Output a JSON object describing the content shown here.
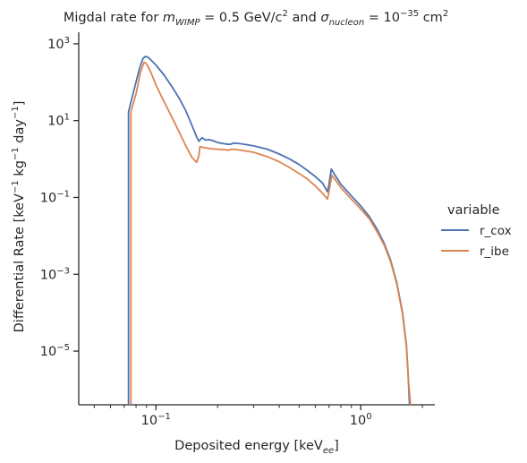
{
  "chart_data": {
    "type": "line",
    "title": {
      "prefix": "Migdal rate for ",
      "m_sym": "m",
      "m_sub": "WIMP",
      "m_val": " = 0.5 GeV/c",
      "m_exp": "2",
      "and_word": " and ",
      "sigma_sym": "σ",
      "sigma_sub": "nucleon",
      "sigma_val": " = 10",
      "sigma_exp": "−35",
      "sigma_unit": " cm",
      "sigma_unit_exp": "2"
    },
    "xlabel": {
      "text": "Deposited energy [keV",
      "sub": "ee",
      "close": "]"
    },
    "ylabel": {
      "t1": "Differential Rate [keV",
      "e1": "−1",
      "t2": " kg",
      "e2": "−1",
      "t3": " day",
      "e3": "−1",
      "t4": "]"
    },
    "x_scale": "log",
    "y_scale": "log",
    "xlim": [
      0.042,
      2.3
    ],
    "ylim": [
      4e-07,
      2000
    ],
    "x_major_ticks": [
      {
        "value": 0.1,
        "base": "10",
        "exp": "−1"
      },
      {
        "value": 1.0,
        "base": "10",
        "exp": "0"
      }
    ],
    "x_minor_ticks": [
      0.05,
      0.06,
      0.07,
      0.08,
      0.09,
      0.2,
      0.3,
      0.4,
      0.5,
      0.6,
      0.7,
      0.8,
      0.9,
      2.0
    ],
    "y_major_ticks": [
      {
        "value": 1000,
        "base": "10",
        "exp": "3"
      },
      {
        "value": 10,
        "base": "10",
        "exp": "1"
      },
      {
        "value": 0.1,
        "base": "10",
        "exp": "−1"
      },
      {
        "value": 0.001,
        "base": "10",
        "exp": "−3"
      },
      {
        "value": 1e-05,
        "base": "10",
        "exp": "−5"
      }
    ],
    "grid": false,
    "legend": {
      "title": "variable",
      "placement": "right"
    },
    "series": [
      {
        "name": "r_cox",
        "color": "#4c72b0",
        "points": [
          [
            0.0735,
            4e-07
          ],
          [
            0.0735,
            17
          ],
          [
            0.078,
            60
          ],
          [
            0.083,
            220
          ],
          [
            0.0865,
            420
          ],
          [
            0.089,
            470
          ],
          [
            0.092,
            440
          ],
          [
            0.1,
            280
          ],
          [
            0.11,
            150
          ],
          [
            0.12,
            75
          ],
          [
            0.13,
            38
          ],
          [
            0.14,
            18
          ],
          [
            0.15,
            7.5
          ],
          [
            0.158,
            3.8
          ],
          [
            0.162,
            2.9
          ],
          [
            0.168,
            3.6
          ],
          [
            0.175,
            3.1
          ],
          [
            0.182,
            3.2
          ],
          [
            0.19,
            3.0
          ],
          [
            0.2,
            2.7
          ],
          [
            0.215,
            2.5
          ],
          [
            0.23,
            2.4
          ],
          [
            0.24,
            2.6
          ],
          [
            0.26,
            2.5
          ],
          [
            0.3,
            2.2
          ],
          [
            0.35,
            1.8
          ],
          [
            0.4,
            1.35
          ],
          [
            0.45,
            1.0
          ],
          [
            0.5,
            0.72
          ],
          [
            0.55,
            0.5
          ],
          [
            0.6,
            0.35
          ],
          [
            0.65,
            0.24
          ],
          [
            0.688,
            0.14
          ],
          [
            0.7,
            0.22
          ],
          [
            0.718,
            0.55
          ],
          [
            0.74,
            0.42
          ],
          [
            0.8,
            0.22
          ],
          [
            0.9,
            0.11
          ],
          [
            1.0,
            0.06
          ],
          [
            1.1,
            0.032
          ],
          [
            1.2,
            0.015
          ],
          [
            1.3,
            0.0065
          ],
          [
            1.4,
            0.0023
          ],
          [
            1.5,
            0.0006
          ],
          [
            1.6,
            0.0001
          ],
          [
            1.67,
            1.5e-05
          ],
          [
            1.7,
            3e-06
          ],
          [
            1.73,
            4e-07
          ]
        ]
      },
      {
        "name": "r_ibe",
        "color": "#dd8452",
        "points": [
          [
            0.0755,
            4e-07
          ],
          [
            0.0755,
            17
          ],
          [
            0.08,
            50
          ],
          [
            0.084,
            180
          ],
          [
            0.0875,
            330
          ],
          [
            0.09,
            300
          ],
          [
            0.095,
            170
          ],
          [
            0.1,
            85
          ],
          [
            0.11,
            30
          ],
          [
            0.12,
            12
          ],
          [
            0.13,
            5.0
          ],
          [
            0.14,
            2.2
          ],
          [
            0.15,
            1.1
          ],
          [
            0.158,
            0.82
          ],
          [
            0.162,
            1.2
          ],
          [
            0.164,
            2.1
          ],
          [
            0.17,
            2.0
          ],
          [
            0.185,
            1.85
          ],
          [
            0.2,
            1.8
          ],
          [
            0.215,
            1.75
          ],
          [
            0.225,
            1.7
          ],
          [
            0.235,
            1.8
          ],
          [
            0.25,
            1.75
          ],
          [
            0.3,
            1.5
          ],
          [
            0.35,
            1.15
          ],
          [
            0.4,
            0.85
          ],
          [
            0.45,
            0.6
          ],
          [
            0.5,
            0.42
          ],
          [
            0.55,
            0.3
          ],
          [
            0.6,
            0.2
          ],
          [
            0.65,
            0.13
          ],
          [
            0.688,
            0.09
          ],
          [
            0.7,
            0.14
          ],
          [
            0.722,
            0.38
          ],
          [
            0.74,
            0.32
          ],
          [
            0.8,
            0.18
          ],
          [
            0.9,
            0.09
          ],
          [
            1.0,
            0.05
          ],
          [
            1.1,
            0.028
          ],
          [
            1.2,
            0.013
          ],
          [
            1.3,
            0.0058
          ],
          [
            1.4,
            0.0021
          ],
          [
            1.5,
            0.00055
          ],
          [
            1.6,
            9e-05
          ],
          [
            1.67,
            1.3e-05
          ],
          [
            1.7,
            2.5e-06
          ],
          [
            1.75,
            4e-07
          ]
        ]
      }
    ]
  }
}
